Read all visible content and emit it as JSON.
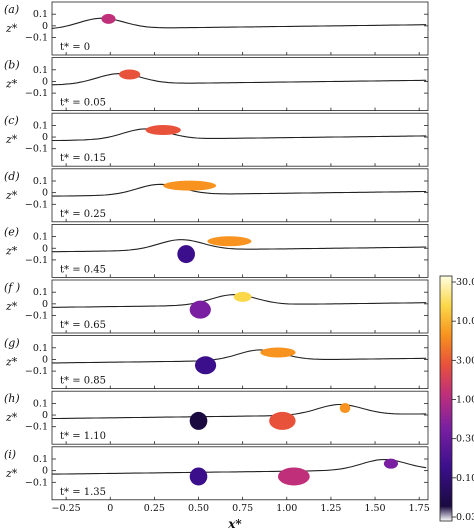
{
  "figure": {
    "y_ticks": [
      "0.1",
      "0",
      "−0.1"
    ],
    "x_ticks": [
      "−0.25",
      "0",
      "0.25",
      "0.50",
      "0.75",
      "1.00",
      "1.25",
      "1.50",
      "1.75"
    ],
    "x_label": "x*",
    "z_label": "z*",
    "colorbar": {
      "ticks": [
        "30.0",
        "10.0",
        "3.00",
        "1.00",
        "0.30",
        "0.10",
        "0.03"
      ],
      "stops": [
        "#ffffff",
        "#1a0a40",
        "#3b0f8c",
        "#7a1fa2",
        "#c0307a",
        "#e8523a",
        "#f7931e",
        "#fbd84a",
        "#fffde0"
      ]
    },
    "panels": [
      {
        "label": "(a)",
        "time": "t* = 0"
      },
      {
        "label": "(b)",
        "time": "t* = 0.05"
      },
      {
        "label": "(c)",
        "time": "t* = 0.15"
      },
      {
        "label": "(d)",
        "time": "t* = 0.25"
      },
      {
        "label": "(e)",
        "time": "t* = 0.45"
      },
      {
        "label": "(f )",
        "time": "t* = 0.65"
      },
      {
        "label": "(g)",
        "time": "t* = 0.85"
      },
      {
        "label": "(h)",
        "time": "t* = 1.10"
      },
      {
        "label": "(i)",
        "time": "t* = 1.35"
      }
    ]
  }
}
